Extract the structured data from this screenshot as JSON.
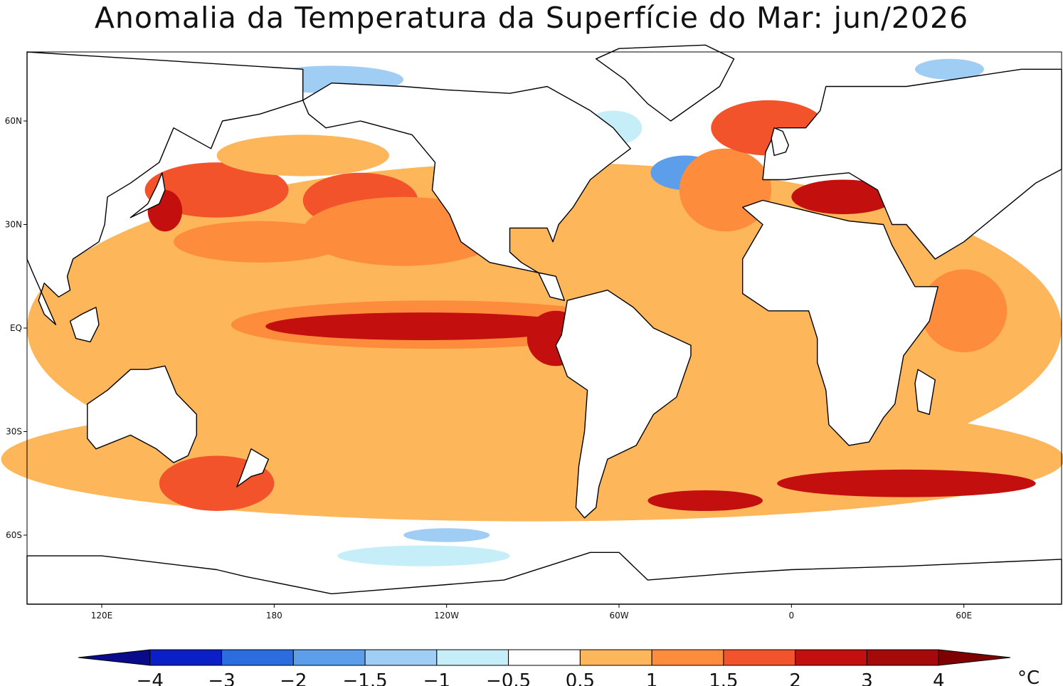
{
  "title": "Anomalia da Temperatura da Superfície do Mar: jun/2026",
  "map": {
    "projection": "cylindrical-equidistant",
    "lon_range_deg_east": [
      94,
      454
    ],
    "lat_range": [
      -80,
      80
    ],
    "x_ticks": [
      {
        "lon": 120,
        "label": "120E"
      },
      {
        "lon": 180,
        "label": "180"
      },
      {
        "lon": 240,
        "label": "120W"
      },
      {
        "lon": 300,
        "label": "60W"
      },
      {
        "lon": 360,
        "label": "0"
      },
      {
        "lon": 420,
        "label": "60E"
      }
    ],
    "y_ticks": [
      {
        "lat": 60,
        "label": "60N"
      },
      {
        "lat": 30,
        "label": "30N"
      },
      {
        "lat": 0,
        "label": "EQ"
      },
      {
        "lat": -30,
        "label": "30S"
      },
      {
        "lat": -60,
        "label": "60S"
      }
    ],
    "land_color": "#ffffff",
    "coast_color": "#000000"
  },
  "colorbar": {
    "unit": "°C",
    "boundaries": [
      "-4",
      "-3",
      "-2",
      "-1.5",
      "-1",
      "-0.5",
      "0.5",
      "1",
      "1.5",
      "2",
      "3",
      "4"
    ],
    "colors": [
      "#0a0a8c",
      "#0b1fc8",
      "#2a6de0",
      "#5d9eea",
      "#9fcdf3",
      "#c5eef8",
      "#ffffff",
      "#fdb65a",
      "#fd8c3c",
      "#f2532a",
      "#c40f0f",
      "#a50a0a",
      "#7f0000"
    ]
  }
}
